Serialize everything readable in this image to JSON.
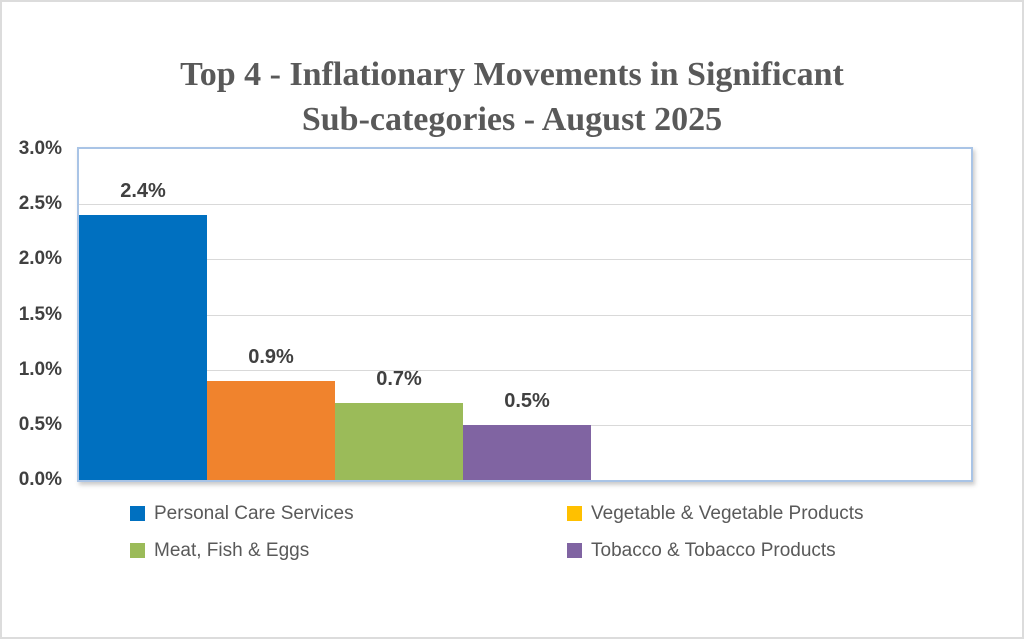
{
  "chart_data": {
    "type": "bar",
    "title": "Top 4 - Inflationary Movements in Significant Sub-categories - August 2025",
    "title_lines": [
      "Top 4 - Inflationary Movements in Significant",
      "Sub-categories - August 2025"
    ],
    "xlabel": "",
    "ylabel": "",
    "ylim": [
      0,
      3.0
    ],
    "grid": "horizontal",
    "legend_position": "bottom",
    "y_ticks": [
      {
        "label": "3.0%",
        "value": 3.0
      },
      {
        "label": "2.5%",
        "value": 2.5
      },
      {
        "label": "2.0%",
        "value": 2.0
      },
      {
        "label": "1.5%",
        "value": 1.5
      },
      {
        "label": "1.0%",
        "value": 1.0
      },
      {
        "label": "0.5%",
        "value": 0.5
      },
      {
        "label": "0.0%",
        "value": 0.0
      }
    ],
    "series": [
      {
        "name": "Personal Care Services",
        "value": 2.4,
        "data_label": "2.4%",
        "bar_color": "#0070C0",
        "legend_color": "#0070C0"
      },
      {
        "name": "Vegetable & Vegetable Products",
        "value": 0.9,
        "data_label": "0.9%",
        "bar_color": "#F0832D",
        "legend_color": "#FFC000"
      },
      {
        "name": "Meat, Fish & Eggs",
        "value": 0.7,
        "data_label": "0.7%",
        "bar_color": "#9BBB59",
        "legend_color": "#9BBB59"
      },
      {
        "name": "Tobacco & Tobacco Products",
        "value": 0.5,
        "data_label": "0.5%",
        "bar_color": "#8064A2",
        "legend_color": "#8064A2"
      }
    ],
    "colors": {
      "title_text": "#595959",
      "tick_label_text": "#404040",
      "data_label_text": "#404040",
      "legend_text": "#595959",
      "gridline": "#D9D9D9",
      "plot_border": "#A9C4E6",
      "figure_border": "#DCDCDC",
      "background": "#FFFFFF"
    }
  }
}
